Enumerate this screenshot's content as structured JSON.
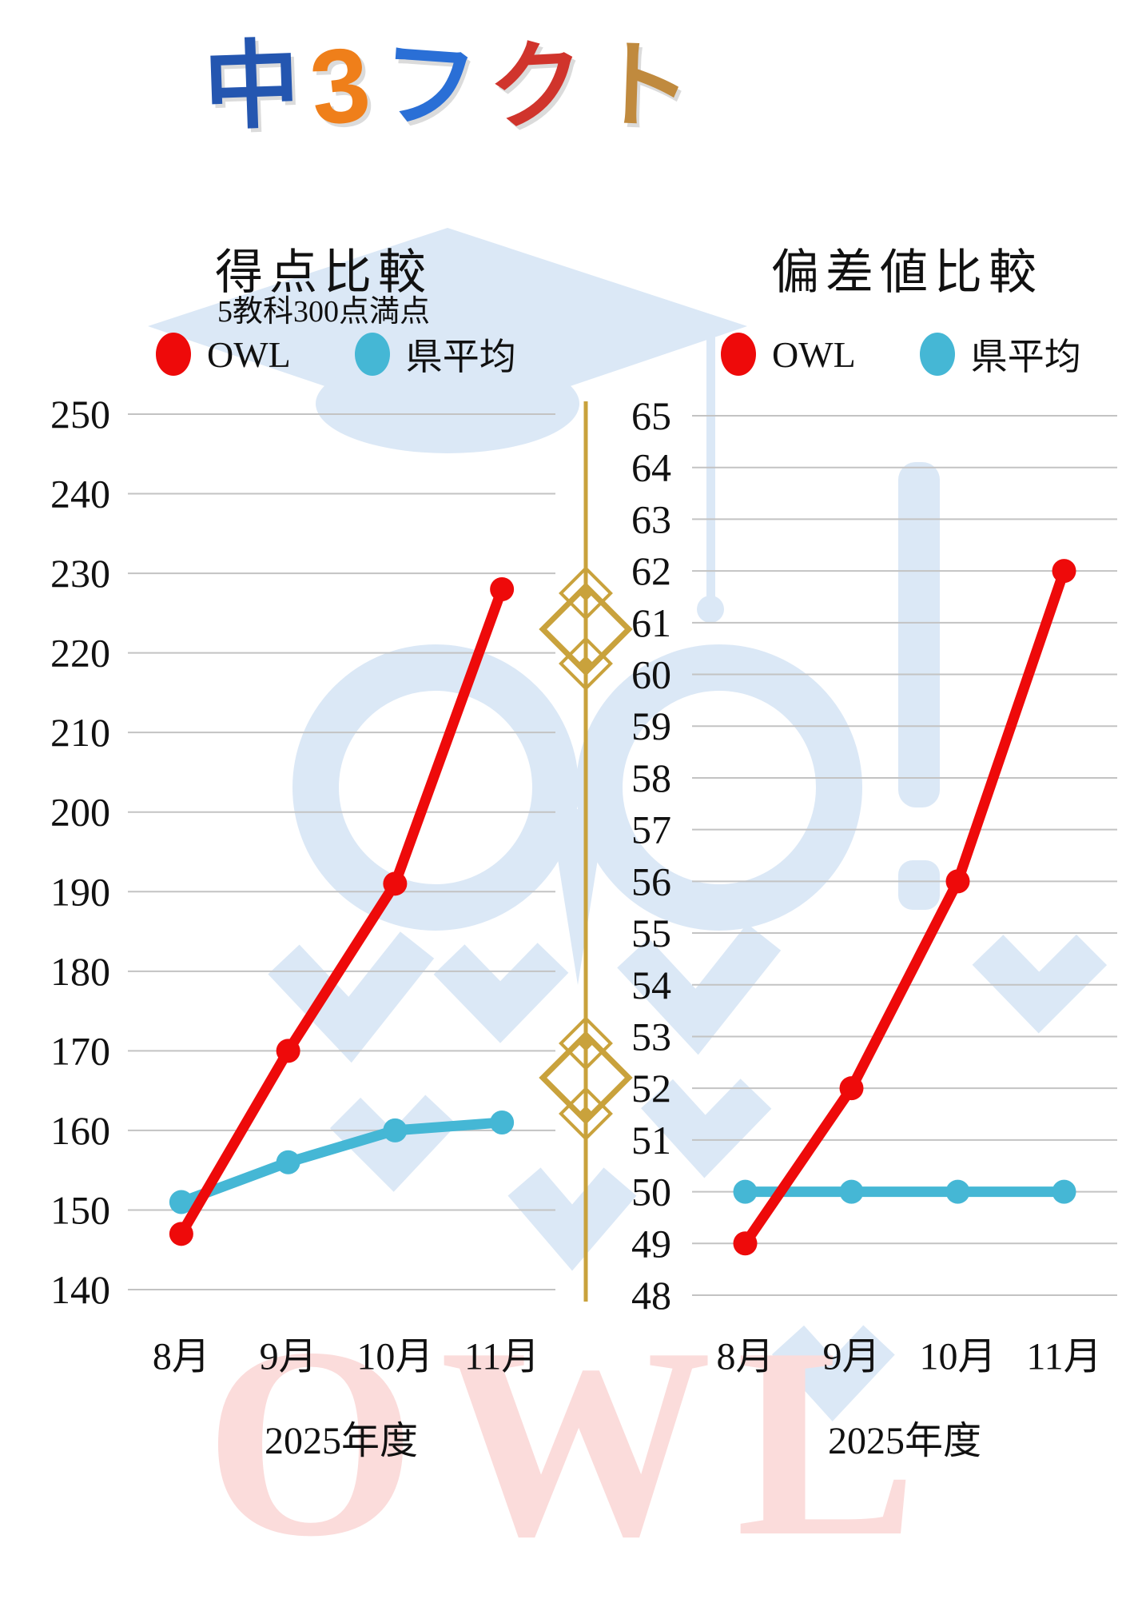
{
  "logo": {
    "text": "中3フクト",
    "chars": [
      {
        "ch": "中",
        "color": "#2456b0"
      },
      {
        "ch": "3",
        "color": "#ef7f1a"
      },
      {
        "ch": "フ",
        "color": "#2a6fd6"
      },
      {
        "ch": "ク",
        "color": "#d0342c"
      },
      {
        "ch": "ト",
        "color": "#c08a3e"
      }
    ]
  },
  "watermark": {
    "text": "OWL",
    "pink": "#fbdcdb",
    "blue": "#dbe8f6"
  },
  "divider_color": "#c9a23c",
  "chart_data": [
    {
      "type": "line",
      "title": "得点比較",
      "subtitle": "5教科300点満点",
      "categories": [
        "8月",
        "9月",
        "10月",
        "11月"
      ],
      "series": [
        {
          "name": "OWL",
          "color": "#ee0a0a",
          "values": [
            147,
            170,
            191,
            228
          ]
        },
        {
          "name": "県平均",
          "color": "#45b7d5",
          "values": [
            151,
            156,
            160,
            161
          ]
        }
      ],
      "xlabel": "2025年度",
      "ylim": [
        140,
        250
      ],
      "ytick_step": 10,
      "grid": true,
      "legend_position": "top"
    },
    {
      "type": "line",
      "title": "偏差値比較",
      "categories": [
        "8月",
        "9月",
        "10月",
        "11月"
      ],
      "series": [
        {
          "name": "OWL",
          "color": "#ee0a0a",
          "values": [
            49,
            52,
            56,
            62
          ]
        },
        {
          "name": "県平均",
          "color": "#45b7d5",
          "values": [
            50,
            50,
            50,
            50
          ]
        }
      ],
      "xlabel": "2025年度",
      "ylim": [
        48,
        65
      ],
      "ytick_step": 1,
      "grid": true,
      "legend_position": "top"
    }
  ]
}
